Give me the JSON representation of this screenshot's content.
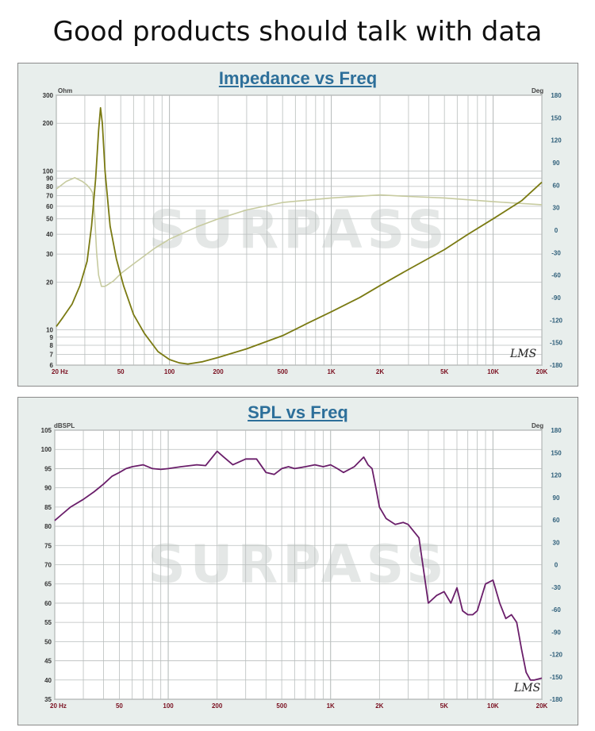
{
  "headline": "Good products should talk with data",
  "watermark": "SURPASS",
  "signature": "LMS",
  "chart_data": [
    {
      "type": "line",
      "title": "Impedance vs Freq",
      "left_unit": "Ohm",
      "right_unit": "Deg",
      "x_scale": "log",
      "y_scale": "log",
      "xlim": [
        20,
        20000
      ],
      "ylim": [
        6,
        300
      ],
      "right_ylim": [
        -180,
        180
      ],
      "x_ticks": [
        20,
        50,
        100,
        200,
        500,
        1000,
        2000,
        5000,
        10000,
        20000
      ],
      "x_tick_labels": [
        "20  Hz",
        "50",
        "100",
        "200",
        "500",
        "1K",
        "2K",
        "5K",
        "10K",
        "20K"
      ],
      "y_ticks": [
        6,
        7,
        8,
        9,
        10,
        20,
        30,
        40,
        50,
        60,
        70,
        80,
        90,
        100,
        200,
        300
      ],
      "y_tick_labels": [
        "6",
        "7",
        "8",
        "9",
        "10",
        "20",
        "30",
        "40",
        "50",
        "60",
        "70",
        "80",
        "90",
        "100",
        "200",
        "300"
      ],
      "right_ticks": [
        -180,
        -150,
        -120,
        -90,
        -60,
        -30,
        0,
        30,
        60,
        90,
        120,
        150,
        180
      ],
      "right_tick_labels": [
        "-180",
        "-150",
        "-120",
        "-90",
        "-60",
        "-30",
        "0",
        "30",
        "60",
        "90",
        "120",
        "150",
        "180"
      ],
      "colors": {
        "series_main": "#7a7a12",
        "series_secondary": "#c7cba0",
        "grid": "#b9bebd",
        "left_tick": "#333333",
        "right_tick": "#2f5f7a",
        "bottom_tick": "#7a1020"
      },
      "series": [
        {
          "axis": "left",
          "x": [
            20,
            22,
            25,
            28,
            31,
            33,
            35,
            36.5,
            37.5,
            38.5,
            40,
            43,
            47,
            52,
            60,
            70,
            85,
            100,
            115,
            130,
            160,
            200,
            300,
            500,
            700,
            1000,
            1500,
            2000,
            3000,
            5000,
            7000,
            10000,
            15000,
            20000
          ],
          "y": [
            10.5,
            12,
            14.5,
            19,
            27,
            45,
            90,
            180,
            250,
            200,
            100,
            45,
            28,
            19,
            12.5,
            9.5,
            7.3,
            6.5,
            6.2,
            6.1,
            6.3,
            6.7,
            7.6,
            9.2,
            10.9,
            13,
            16,
            19,
            24,
            32,
            40,
            50,
            65,
            85
          ]
        },
        {
          "axis": "right",
          "x": [
            20,
            23,
            26,
            29,
            31,
            32.5,
            33.5,
            34.5,
            35.5,
            36.5,
            38,
            40,
            45,
            50,
            60,
            80,
            100,
            150,
            200,
            300,
            500,
            1000,
            2000,
            3000,
            5000,
            10000,
            20000
          ],
          "y": [
            55,
            65,
            70,
            65,
            60,
            55,
            50,
            20,
            -30,
            -60,
            -75,
            -75,
            -68,
            -58,
            -45,
            -25,
            -12,
            5,
            15,
            27,
            37,
            43,
            47,
            45,
            43,
            38,
            34
          ]
        }
      ]
    },
    {
      "type": "line",
      "title": "SPL vs Freq",
      "left_unit": "dBSPL",
      "right_unit": "Deg",
      "x_scale": "log",
      "xlim": [
        20,
        20000
      ],
      "ylim": [
        35,
        105
      ],
      "right_ylim": [
        -180,
        180
      ],
      "x_ticks": [
        20,
        50,
        100,
        200,
        500,
        1000,
        2000,
        5000,
        10000,
        20000
      ],
      "x_tick_labels": [
        "20  Hz",
        "50",
        "100",
        "200",
        "500",
        "1K",
        "2K",
        "5K",
        "10K",
        "20K"
      ],
      "y_ticks": [
        35,
        40,
        45,
        50,
        55,
        60,
        65,
        70,
        75,
        80,
        85,
        90,
        95,
        100,
        105
      ],
      "y_tick_labels": [
        "35",
        "40",
        "45",
        "50",
        "55",
        "60",
        "65",
        "70",
        "75",
        "80",
        "85",
        "90",
        "95",
        "100",
        "105"
      ],
      "right_ticks": [
        -180,
        -150,
        -120,
        -90,
        -60,
        -30,
        0,
        30,
        60,
        90,
        120,
        150,
        180
      ],
      "right_tick_labels": [
        "-180",
        "-150",
        "-120",
        "-90",
        "-60",
        "-30",
        "0",
        "30",
        "60",
        "90",
        "120",
        "150",
        "180"
      ],
      "colors": {
        "series_main": "#6a1e6a",
        "grid": "#b9bebd",
        "left_tick": "#333333",
        "right_tick": "#2f5f7a",
        "bottom_tick": "#7a1020"
      },
      "series": [
        {
          "axis": "left",
          "x": [
            20,
            22,
            25,
            30,
            35,
            40,
            45,
            50,
            55,
            60,
            70,
            80,
            90,
            100,
            120,
            150,
            170,
            200,
            220,
            250,
            300,
            350,
            400,
            450,
            500,
            550,
            600,
            700,
            800,
            900,
            1000,
            1100,
            1200,
            1400,
            1600,
            1700,
            1800,
            1900,
            2000,
            2200,
            2500,
            2800,
            3000,
            3500,
            4000,
            4500,
            5000,
            5500,
            6000,
            6500,
            7000,
            7500,
            8000,
            9000,
            10000,
            11000,
            12000,
            13000,
            14000,
            15000,
            16000,
            17000,
            18000,
            20000
          ],
          "y": [
            81.5,
            83,
            85,
            87,
            89,
            91,
            93,
            94,
            95,
            95.5,
            96,
            95,
            94.8,
            95,
            95.5,
            96,
            95.8,
            99.5,
            98,
            96,
            97.5,
            97.5,
            94,
            93.5,
            95,
            95.5,
            95,
            95.5,
            96,
            95.5,
            96,
            95,
            94,
            95.5,
            98,
            96,
            95,
            90,
            85,
            82,
            80.5,
            81,
            80.5,
            77,
            60,
            62,
            63,
            60,
            64,
            58,
            57,
            57,
            58,
            65,
            66,
            60,
            56,
            57,
            55,
            48,
            42,
            40,
            40,
            40.5
          ]
        }
      ]
    }
  ]
}
